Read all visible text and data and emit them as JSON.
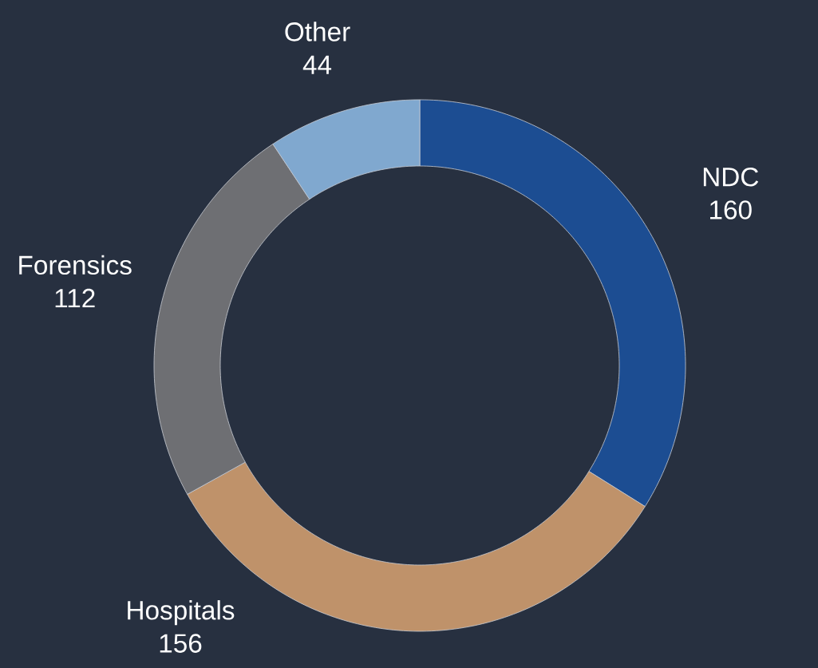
{
  "chart_data": {
    "type": "donut",
    "categories": [
      "NDC",
      "Hospitals",
      "Forensics",
      "Other"
    ],
    "values": [
      160,
      156,
      112,
      44
    ],
    "colors": [
      "#1c4d92",
      "#bf926a",
      "#6e6f73",
      "#80a8cf"
    ],
    "data_labels": true
  }
}
